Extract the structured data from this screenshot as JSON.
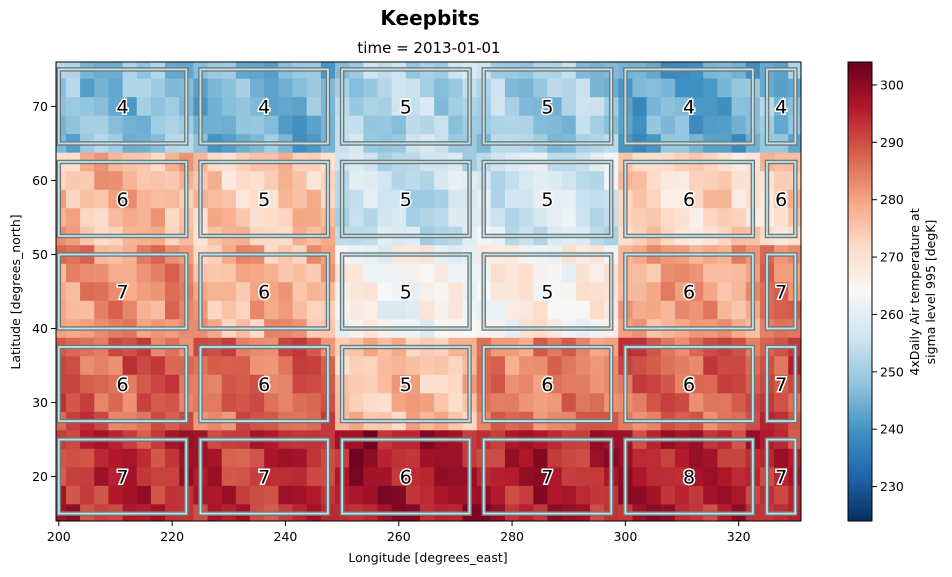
{
  "chart_data": {
    "type": "heatmap",
    "suptitle": "Keepbits",
    "title": "time = 2013-01-01",
    "xlabel": "Longitude [degrees_east]",
    "ylabel": "Latitude [degrees_north]",
    "xlim": [
      199.5,
      331
    ],
    "ylim": [
      14,
      76
    ],
    "xticks": [
      200,
      220,
      240,
      260,
      280,
      300,
      320
    ],
    "yticks": [
      20,
      30,
      40,
      50,
      60,
      70
    ],
    "colorbar": {
      "label_lines": [
        "4xDaily Air temperature at",
        "sigma level 995 [degK]"
      ],
      "min": 224,
      "max": 304,
      "ticks": [
        230,
        240,
        250,
        260,
        270,
        280,
        290,
        300
      ],
      "colormap": "RdBu_r"
    },
    "field_grid": {
      "lon": [
        200,
        202.5,
        205,
        207.5,
        210,
        212.5,
        215,
        217.5,
        220,
        222.5,
        225,
        227.5,
        230,
        232.5,
        235,
        237.5,
        240,
        242.5,
        245,
        247.5,
        250,
        252.5,
        255,
        257.5,
        260,
        262.5,
        265,
        267.5,
        270,
        272.5,
        275,
        277.5,
        280,
        282.5,
        285,
        287.5,
        290,
        292.5,
        295,
        297.5,
        300,
        302.5,
        305,
        307.5,
        310,
        312.5,
        315,
        317.5,
        320,
        322.5,
        325,
        327.5,
        330
      ],
      "lat": [
        75,
        72.5,
        70,
        67.5,
        65,
        62.5,
        60,
        57.5,
        55,
        52.5,
        50,
        47.5,
        45,
        42.5,
        40,
        37.5,
        35,
        32.5,
        30,
        27.5,
        25,
        22.5,
        20,
        17.5,
        15
      ],
      "region_means": {
        "lat_bands": [
          [
            65,
            75
          ],
          [
            52.5,
            62.5
          ],
          [
            40,
            50
          ],
          [
            27.5,
            37.5
          ],
          [
            15,
            25
          ]
        ],
        "lon_bands": [
          [
            200,
            222.5
          ],
          [
            225,
            247.5
          ],
          [
            250,
            272.5
          ],
          [
            275,
            297.5
          ],
          [
            300,
            322.5
          ],
          [
            325,
            330
          ]
        ],
        "values": [
          [
            247,
            245,
            252,
            250,
            243,
            248
          ],
          [
            277,
            274,
            255,
            257,
            272,
            273
          ],
          [
            282,
            278,
            264,
            266,
            280,
            285
          ],
          [
            288,
            287,
            276,
            284,
            288,
            291
          ],
          [
            294,
            293,
            297,
            296,
            295,
            294
          ]
        ]
      }
    },
    "boxes": [
      {
        "lon": [
          200,
          222.5
        ],
        "lat": [
          65,
          75
        ],
        "label": "4"
      },
      {
        "lon": [
          225,
          247.5
        ],
        "lat": [
          65,
          75
        ],
        "label": "4"
      },
      {
        "lon": [
          250,
          272.5
        ],
        "lat": [
          65,
          75
        ],
        "label": "5"
      },
      {
        "lon": [
          275,
          297.5
        ],
        "lat": [
          65,
          75
        ],
        "label": "5"
      },
      {
        "lon": [
          300,
          322.5
        ],
        "lat": [
          65,
          75
        ],
        "label": "4"
      },
      {
        "lon": [
          325,
          330
        ],
        "lat": [
          65,
          75
        ],
        "label": "4"
      },
      {
        "lon": [
          200,
          222.5
        ],
        "lat": [
          52.5,
          62.5
        ],
        "label": "6"
      },
      {
        "lon": [
          225,
          247.5
        ],
        "lat": [
          52.5,
          62.5
        ],
        "label": "5"
      },
      {
        "lon": [
          250,
          272.5
        ],
        "lat": [
          52.5,
          62.5
        ],
        "label": "5"
      },
      {
        "lon": [
          275,
          297.5
        ],
        "lat": [
          52.5,
          62.5
        ],
        "label": "5"
      },
      {
        "lon": [
          300,
          322.5
        ],
        "lat": [
          52.5,
          62.5
        ],
        "label": "6"
      },
      {
        "lon": [
          325,
          330
        ],
        "lat": [
          52.5,
          62.5
        ],
        "label": "6"
      },
      {
        "lon": [
          200,
          222.5
        ],
        "lat": [
          40,
          50
        ],
        "label": "7"
      },
      {
        "lon": [
          225,
          247.5
        ],
        "lat": [
          40,
          50
        ],
        "label": "6"
      },
      {
        "lon": [
          250,
          272.5
        ],
        "lat": [
          40,
          50
        ],
        "label": "5"
      },
      {
        "lon": [
          275,
          297.5
        ],
        "lat": [
          40,
          50
        ],
        "label": "5"
      },
      {
        "lon": [
          300,
          322.5
        ],
        "lat": [
          40,
          50
        ],
        "label": "6"
      },
      {
        "lon": [
          325,
          330
        ],
        "lat": [
          40,
          50
        ],
        "label": "7"
      },
      {
        "lon": [
          200,
          222.5
        ],
        "lat": [
          27.5,
          37.5
        ],
        "label": "6"
      },
      {
        "lon": [
          225,
          247.5
        ],
        "lat": [
          27.5,
          37.5
        ],
        "label": "6"
      },
      {
        "lon": [
          250,
          272.5
        ],
        "lat": [
          27.5,
          37.5
        ],
        "label": "5"
      },
      {
        "lon": [
          275,
          297.5
        ],
        "lat": [
          27.5,
          37.5
        ],
        "label": "6"
      },
      {
        "lon": [
          300,
          322.5
        ],
        "lat": [
          27.5,
          37.5
        ],
        "label": "6"
      },
      {
        "lon": [
          325,
          330
        ],
        "lat": [
          27.5,
          37.5
        ],
        "label": "7"
      },
      {
        "lon": [
          200,
          222.5
        ],
        "lat": [
          15,
          25
        ],
        "label": "7"
      },
      {
        "lon": [
          225,
          247.5
        ],
        "lat": [
          15,
          25
        ],
        "label": "7"
      },
      {
        "lon": [
          250,
          272.5
        ],
        "lat": [
          15,
          25
        ],
        "label": "6"
      },
      {
        "lon": [
          275,
          297.5
        ],
        "lat": [
          15,
          25
        ],
        "label": "7"
      },
      {
        "lon": [
          300,
          322.5
        ],
        "lat": [
          15,
          25
        ],
        "label": "8"
      },
      {
        "lon": [
          325,
          330
        ],
        "lat": [
          15,
          25
        ],
        "label": "7"
      }
    ],
    "box_color": "#b9e3ea",
    "box_outline_color": "#777777"
  }
}
